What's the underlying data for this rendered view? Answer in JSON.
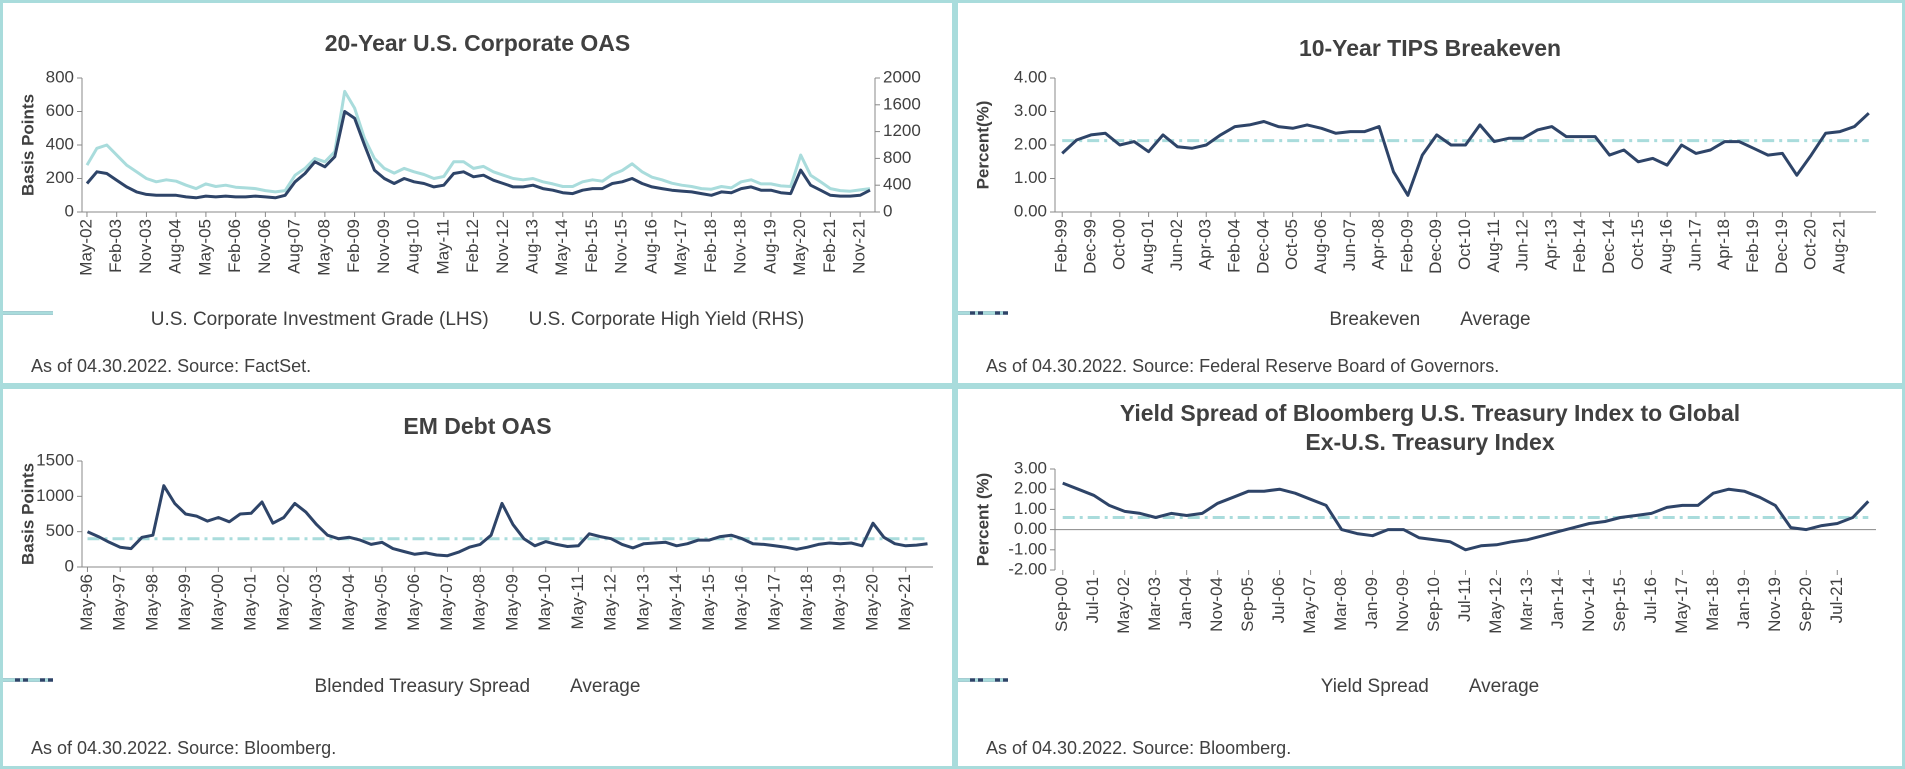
{
  "chart_data": [
    {
      "type": "line",
      "title": "20-Year U.S. Corporate OAS",
      "ylabel": "Basis Points",
      "categories": [
        "May-02",
        null,
        null,
        "Feb-03",
        null,
        null,
        "Nov-03",
        null,
        null,
        "Aug-04",
        null,
        null,
        "May-05",
        null,
        null,
        "Feb-06",
        null,
        null,
        "Nov-06",
        null,
        null,
        "Aug-07",
        null,
        null,
        "May-08",
        null,
        null,
        "Feb-09",
        null,
        null,
        "Nov-09",
        null,
        null,
        "Aug-10",
        null,
        null,
        "May-11",
        null,
        null,
        "Feb-12",
        null,
        null,
        "Nov-12",
        null,
        null,
        "Aug-13",
        null,
        null,
        "May-14",
        null,
        null,
        "Feb-15",
        null,
        null,
        "Nov-15",
        null,
        null,
        "Aug-16",
        null,
        null,
        "May-17",
        null,
        null,
        "Feb-18",
        null,
        null,
        "Nov-18",
        null,
        null,
        "Aug-19",
        null,
        null,
        "May-20",
        null,
        null,
        "Feb-21",
        null,
        null,
        "Nov-21",
        null
      ],
      "series": [
        {
          "name": "U.S. Corporate Investment Grade (LHS)",
          "color": "#2e4468",
          "values": [
            170,
            240,
            230,
            190,
            150,
            120,
            105,
            100,
            100,
            100,
            90,
            85,
            95,
            90,
            95,
            90,
            90,
            95,
            90,
            85,
            100,
            180,
            230,
            300,
            270,
            330,
            600,
            560,
            400,
            250,
            200,
            170,
            200,
            180,
            170,
            150,
            160,
            230,
            240,
            210,
            220,
            190,
            170,
            150,
            150,
            160,
            140,
            130,
            115,
            110,
            130,
            140,
            140,
            170,
            180,
            200,
            170,
            150,
            140,
            130,
            125,
            120,
            110,
            100,
            120,
            115,
            140,
            150,
            130,
            130,
            115,
            110,
            250,
            160,
            130,
            100,
            95,
            95,
            100,
            130
          ]
        },
        {
          "name": "U.S. Corporate High Yield (RHS)",
          "color": "#a9dcdc",
          "axis": "y2",
          "values": [
            700,
            950,
            1000,
            850,
            700,
            600,
            500,
            450,
            480,
            460,
            400,
            350,
            420,
            380,
            400,
            370,
            360,
            350,
            320,
            300,
            320,
            550,
            650,
            800,
            750,
            900,
            1800,
            1550,
            1100,
            800,
            650,
            580,
            650,
            600,
            560,
            500,
            530,
            750,
            750,
            650,
            680,
            600,
            550,
            500,
            480,
            500,
            450,
            420,
            380,
            380,
            450,
            480,
            460,
            560,
            620,
            720,
            600,
            520,
            480,
            430,
            400,
            380,
            350,
            340,
            380,
            360,
            450,
            480,
            420,
            420,
            390,
            380,
            850,
            550,
            450,
            350,
            320,
            310,
            330,
            350
          ]
        }
      ],
      "ylim": [
        0,
        800
      ],
      "yticks": [
        0,
        200,
        400,
        600,
        800
      ],
      "y2lim": [
        0,
        2000
      ],
      "y2ticks": [
        0,
        400,
        800,
        1200,
        1600,
        2000
      ],
      "note": "As of 04.30.2022. Source: FactSet."
    },
    {
      "type": "line",
      "title": "10-Year TIPS Breakeven",
      "ylabel": "Percent(%)",
      "categories": [
        "Feb-99",
        null,
        "Dec-99",
        null,
        "Oct-00",
        null,
        "Aug-01",
        null,
        "Jun-02",
        null,
        "Apr-03",
        null,
        "Feb-04",
        null,
        "Dec-04",
        null,
        "Oct-05",
        null,
        "Aug-06",
        null,
        "Jun-07",
        null,
        "Apr-08",
        null,
        "Feb-09",
        null,
        "Dec-09",
        null,
        "Oct-10",
        null,
        "Aug-11",
        null,
        "Jun-12",
        null,
        "Apr-13",
        null,
        "Feb-14",
        null,
        "Dec-14",
        null,
        "Oct-15",
        null,
        "Aug-16",
        null,
        "Jun-17",
        null,
        "Apr-18",
        null,
        "Feb-19",
        null,
        "Dec-19",
        null,
        "Oct-20",
        null,
        "Aug-21",
        null,
        null
      ],
      "series": [
        {
          "name": "Breakeven",
          "color": "#2e4468",
          "values": [
            1.75,
            2.15,
            2.3,
            2.35,
            2.0,
            2.1,
            1.8,
            2.3,
            1.95,
            1.9,
            2.0,
            2.3,
            2.55,
            2.6,
            2.7,
            2.55,
            2.5,
            2.6,
            2.5,
            2.35,
            2.4,
            2.4,
            2.55,
            1.2,
            0.5,
            1.7,
            2.3,
            2.0,
            2.0,
            2.6,
            2.1,
            2.2,
            2.2,
            2.45,
            2.55,
            2.25,
            2.25,
            2.25,
            1.7,
            1.85,
            1.5,
            1.6,
            1.4,
            2.0,
            1.75,
            1.85,
            2.1,
            2.1,
            1.9,
            1.7,
            1.75,
            1.1,
            1.7,
            2.35,
            2.4,
            2.55,
            2.95
          ]
        },
        {
          "name": "Average",
          "color": "#a9dcdc",
          "linestyle": "dashdot",
          "values": [
            2.13,
            2.13,
            2.13,
            2.13,
            2.13,
            2.13,
            2.13,
            2.13,
            2.13,
            2.13,
            2.13,
            2.13,
            2.13,
            2.13,
            2.13,
            2.13,
            2.13,
            2.13,
            2.13,
            2.13,
            2.13,
            2.13,
            2.13,
            2.13,
            2.13,
            2.13,
            2.13,
            2.13,
            2.13,
            2.13,
            2.13,
            2.13,
            2.13,
            2.13,
            2.13,
            2.13,
            2.13,
            2.13,
            2.13,
            2.13,
            2.13,
            2.13,
            2.13,
            2.13,
            2.13,
            2.13,
            2.13,
            2.13,
            2.13,
            2.13,
            2.13,
            2.13,
            2.13,
            2.13,
            2.13,
            2.13,
            2.13
          ]
        }
      ],
      "ylim": [
        0,
        4
      ],
      "yticks": [
        {
          "value": 0,
          "label": "0.00"
        },
        {
          "value": 1,
          "label": "1.00"
        },
        {
          "value": 2,
          "label": "2.00"
        },
        {
          "value": 3,
          "label": "3.00"
        },
        {
          "value": 4,
          "label": "4.00"
        }
      ],
      "note": "As of 04.30.2022. Source: Federal Reserve Board of Governors."
    },
    {
      "type": "line",
      "title": "EM Debt OAS",
      "ylabel": "Basis Points",
      "categories": [
        "May-96",
        null,
        null,
        "May-97",
        null,
        null,
        "May-98",
        null,
        null,
        "May-99",
        null,
        null,
        "May-00",
        null,
        null,
        "May-01",
        null,
        null,
        "May-02",
        null,
        null,
        "May-03",
        null,
        null,
        "May-04",
        null,
        null,
        "May-05",
        null,
        null,
        "May-06",
        null,
        null,
        "May-07",
        null,
        null,
        "May-08",
        null,
        null,
        "May-09",
        null,
        null,
        "May-10",
        null,
        null,
        "May-11",
        null,
        null,
        "May-12",
        null,
        null,
        "May-13",
        null,
        null,
        "May-14",
        null,
        null,
        "May-15",
        null,
        null,
        "May-16",
        null,
        null,
        "May-17",
        null,
        null,
        "May-18",
        null,
        null,
        "May-19",
        null,
        null,
        "May-20",
        null,
        null,
        "May-21",
        null,
        null
      ],
      "series": [
        {
          "name": "Blended Treasury Spread",
          "color": "#2e4468",
          "values": [
            500,
            430,
            350,
            280,
            260,
            420,
            450,
            1150,
            900,
            750,
            720,
            650,
            700,
            640,
            750,
            760,
            920,
            620,
            700,
            900,
            780,
            600,
            450,
            400,
            420,
            380,
            320,
            350,
            260,
            220,
            180,
            200,
            170,
            160,
            210,
            280,
            320,
            450,
            900,
            600,
            400,
            300,
            360,
            320,
            290,
            300,
            470,
            430,
            400,
            320,
            270,
            330,
            340,
            350,
            300,
            330,
            380,
            380,
            430,
            450,
            400,
            330,
            320,
            300,
            280,
            250,
            280,
            320,
            340,
            330,
            340,
            300,
            620,
            420,
            330,
            300,
            310,
            330
          ]
        },
        {
          "name": "Average",
          "color": "#a9dcdc",
          "linestyle": "dashdot",
          "values": [
            400,
            400,
            400,
            400,
            400,
            400,
            400,
            400,
            400,
            400,
            400,
            400,
            400,
            400,
            400,
            400,
            400,
            400,
            400,
            400,
            400,
            400,
            400,
            400,
            400,
            400,
            400,
            400,
            400,
            400,
            400,
            400,
            400,
            400,
            400,
            400,
            400,
            400,
            400,
            400,
            400,
            400,
            400,
            400,
            400,
            400,
            400,
            400,
            400,
            400,
            400,
            400,
            400,
            400,
            400,
            400,
            400,
            400,
            400,
            400,
            400,
            400,
            400,
            400,
            400,
            400,
            400,
            400,
            400,
            400,
            400,
            400,
            400,
            400,
            400,
            400,
            400,
            400
          ]
        }
      ],
      "ylim": [
        0,
        1500
      ],
      "yticks": [
        0,
        500,
        1000,
        1500
      ],
      "note": "As of 04.30.2022. Source: Bloomberg."
    },
    {
      "type": "line",
      "title": "Yield Spread of Bloomberg U.S. Treasury Index to Global Ex-U.S. Treasury Index",
      "ylabel": "Percent (%)",
      "categories": [
        "Sep-00",
        null,
        "Jul-01",
        null,
        "May-02",
        null,
        "Mar-03",
        null,
        "Jan-04",
        null,
        "Nov-04",
        null,
        "Sep-05",
        null,
        "Jul-06",
        null,
        "May-07",
        null,
        "Mar-08",
        null,
        "Jan-09",
        null,
        "Nov-09",
        null,
        "Sep-10",
        null,
        "Jul-11",
        null,
        "May-12",
        null,
        "Mar-13",
        null,
        "Jan-14",
        null,
        "Nov-14",
        null,
        "Sep-15",
        null,
        "Jul-16",
        null,
        "May-17",
        null,
        "Mar-18",
        null,
        "Jan-19",
        null,
        "Nov-19",
        null,
        "Sep-20",
        null,
        "Jul-21",
        null,
        null
      ],
      "series": [
        {
          "name": "Yield Spread",
          "color": "#2e4468",
          "values": [
            2.3,
            2.0,
            1.7,
            1.2,
            0.9,
            0.8,
            0.6,
            0.8,
            0.7,
            0.8,
            1.3,
            1.6,
            1.9,
            1.9,
            2.0,
            1.8,
            1.5,
            1.2,
            0.0,
            -0.2,
            -0.3,
            0.0,
            0.0,
            -0.4,
            -0.5,
            -0.6,
            -1.0,
            -0.8,
            -0.75,
            -0.6,
            -0.5,
            -0.3,
            -0.1,
            0.1,
            0.3,
            0.4,
            0.6,
            0.7,
            0.8,
            1.1,
            1.2,
            1.2,
            1.8,
            2.0,
            1.9,
            1.6,
            1.2,
            0.1,
            0.0,
            0.2,
            0.3,
            0.6,
            1.4
          ]
        },
        {
          "name": "Average",
          "color": "#a9dcdc",
          "linestyle": "dashdot",
          "values": [
            0.6,
            0.6,
            0.6,
            0.6,
            0.6,
            0.6,
            0.6,
            0.6,
            0.6,
            0.6,
            0.6,
            0.6,
            0.6,
            0.6,
            0.6,
            0.6,
            0.6,
            0.6,
            0.6,
            0.6,
            0.6,
            0.6,
            0.6,
            0.6,
            0.6,
            0.6,
            0.6,
            0.6,
            0.6,
            0.6,
            0.6,
            0.6,
            0.6,
            0.6,
            0.6,
            0.6,
            0.6,
            0.6,
            0.6,
            0.6,
            0.6,
            0.6,
            0.6,
            0.6,
            0.6,
            0.6,
            0.6,
            0.6,
            0.6,
            0.6,
            0.6,
            0.6,
            0.6
          ]
        }
      ],
      "ylim": [
        -2,
        3
      ],
      "yticks": [
        {
          "value": -2,
          "label": "-2.00"
        },
        {
          "value": -1,
          "label": "-1.00"
        },
        {
          "value": 0,
          "label": "0.00"
        },
        {
          "value": 1,
          "label": "1.00"
        },
        {
          "value": 2,
          "label": "2.00"
        },
        {
          "value": 3,
          "label": "3.00"
        }
      ],
      "note": "As of 04.30.2022. Source: Bloomberg."
    }
  ]
}
